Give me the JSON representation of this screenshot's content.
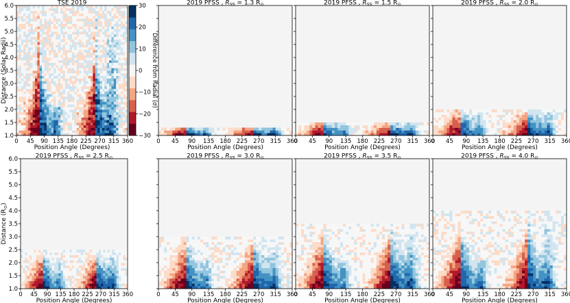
{
  "figure": {
    "colorbar": {
      "label": "Difference from Radial (σ)",
      "ticks": [
        "30",
        "20",
        "10",
        "0",
        "−10",
        "−20",
        "−30"
      ],
      "tick_values": [
        30,
        20,
        10,
        0,
        -10,
        -20,
        -30
      ],
      "range": [
        -30,
        30
      ],
      "colors": [
        "#67001f",
        "#b2182b",
        "#d6604d",
        "#f4a582",
        "#fddbc7",
        "#f7f7f7",
        "#d1e5f0",
        "#92c5de",
        "#4393c3",
        "#2166ac",
        "#053061"
      ]
    }
  },
  "chart_data": [
    {
      "type": "heatmap",
      "title": "TSE 2019",
      "xlabel": "Position Angle (Degrees)",
      "ylabel": "Distance (Solar Radii)",
      "xlim": [
        0,
        360
      ],
      "ylim": [
        1.0,
        6.0
      ],
      "x_ticks": [
        "0",
        "45",
        "90",
        "135",
        "180",
        "225",
        "270",
        "315",
        "360"
      ],
      "y_ticks": [
        "1.0",
        "1.5",
        "2.0",
        "2.5",
        "3.0",
        "3.5",
        "4.0",
        "4.5",
        "5.0",
        "5.5",
        "6.0"
      ],
      "source_surface": null
    },
    {
      "type": "heatmap",
      "title": "2019 PFSS , ",
      "title_sub": "R",
      "title_subsub": "SS",
      "title_tail": " =  1.3 R",
      "title_sun": "⊙",
      "xlabel": "Position Angle (Degrees)",
      "ylabel": "",
      "xlim": [
        0,
        360
      ],
      "ylim": [
        1.0,
        6.0
      ],
      "x_ticks": [
        "0",
        "45",
        "90",
        "135",
        "180",
        "225",
        "270",
        "315",
        "360"
      ],
      "y_ticks": [],
      "source_surface": 1.3
    },
    {
      "type": "heatmap",
      "title": "2019 PFSS , ",
      "title_sub": "R",
      "title_subsub": "SS",
      "title_tail": " =  1.5 R",
      "title_sun": "⊙",
      "xlabel": "Position Angle (Degrees)",
      "ylabel": "",
      "xlim": [
        0,
        360
      ],
      "ylim": [
        1.0,
        6.0
      ],
      "x_ticks": [
        "0",
        "45",
        "90",
        "135",
        "180",
        "225",
        "270",
        "315",
        "360"
      ],
      "y_ticks": [],
      "source_surface": 1.5
    },
    {
      "type": "heatmap",
      "title": "2019 PFSS , ",
      "title_sub": "R",
      "title_subsub": "SS",
      "title_tail": " =  2.0 R",
      "title_sun": "⊙",
      "xlabel": "Position Angle (Degrees)",
      "ylabel": "",
      "xlim": [
        0,
        360
      ],
      "ylim": [
        1.0,
        6.0
      ],
      "x_ticks": [
        "0",
        "45",
        "90",
        "135",
        "180",
        "225",
        "270",
        "315",
        "360"
      ],
      "y_ticks": [],
      "source_surface": 2.0
    },
    {
      "type": "heatmap",
      "title": "2019 PFSS , ",
      "title_sub": "R",
      "title_subsub": "SS",
      "title_tail": " =  2.5 R",
      "title_sun": "⊙",
      "xlabel": "Position Angle (Degrees)",
      "ylabel": "Distance (R",
      "ylabel_sun": "⊙",
      "ylabel_tail": ")",
      "xlim": [
        0,
        360
      ],
      "ylim": [
        1.0,
        6.0
      ],
      "x_ticks": [
        "0",
        "45",
        "90",
        "135",
        "180",
        "225",
        "270",
        "315",
        "360"
      ],
      "y_ticks": [
        "1.0",
        "1.5",
        "2.0",
        "2.5",
        "3.0",
        "3.5",
        "4.0",
        "4.5",
        "5.0",
        "5.5",
        "6.0"
      ],
      "source_surface": 2.5
    },
    {
      "type": "heatmap",
      "title": "2019 PFSS , ",
      "title_sub": "R",
      "title_subsub": "SS",
      "title_tail": " =  3.0 R",
      "title_sun": "⊙",
      "xlabel": "Position Angle (Degrees)",
      "ylabel": "",
      "xlim": [
        0,
        360
      ],
      "ylim": [
        1.0,
        6.0
      ],
      "x_ticks": [
        "0",
        "45",
        "90",
        "135",
        "180",
        "225",
        "270",
        "315",
        "360"
      ],
      "y_ticks": [],
      "source_surface": 3.0
    },
    {
      "type": "heatmap",
      "title": "2019 PFSS , ",
      "title_sub": "R",
      "title_subsub": "SS",
      "title_tail": " =  3.5 R",
      "title_sun": "⊙",
      "xlabel": "Position Angle (Degrees)",
      "ylabel": "",
      "xlim": [
        0,
        360
      ],
      "ylim": [
        1.0,
        6.0
      ],
      "x_ticks": [
        "0",
        "45",
        "90",
        "135",
        "180",
        "225",
        "270",
        "315",
        "360"
      ],
      "y_ticks": [],
      "source_surface": 3.5
    },
    {
      "type": "heatmap",
      "title": "2019 PFSS , ",
      "title_sub": "R",
      "title_subsub": "SS",
      "title_tail": " =  4.0 R",
      "title_sun": "⊙",
      "xlabel": "Position Angle (Degrees)",
      "ylabel": "",
      "xlim": [
        0,
        360
      ],
      "ylim": [
        1.0,
        6.0
      ],
      "x_ticks": [
        "0",
        "45",
        "90",
        "135",
        "180",
        "225",
        "270",
        "315",
        "360"
      ],
      "y_ticks": [],
      "source_surface": 4.0
    }
  ]
}
